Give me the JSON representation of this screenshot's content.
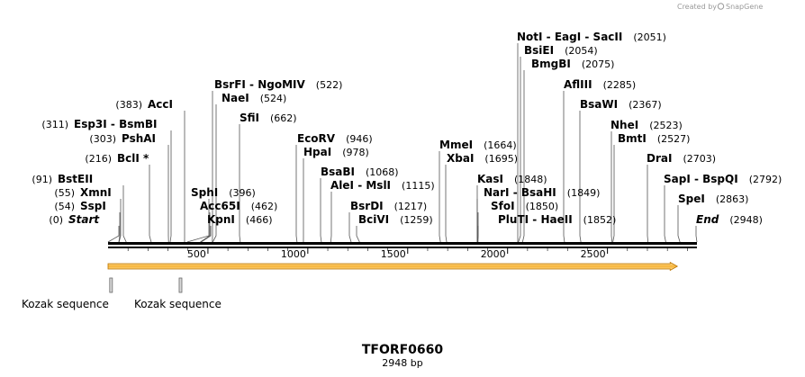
{
  "credit": {
    "text": "Created by",
    "brand": "SnapGene"
  },
  "sequence": {
    "name": "TFORF0660",
    "length_label": "2948 bp",
    "length": 2948
  },
  "colors": {
    "orf_fill": "#f4a81e",
    "orf_stroke": "#b97300",
    "backbone": "#000000",
    "lead": "#555555"
  },
  "enzymes": [
    {
      "parts": [
        "Start"
      ],
      "pos": "(0)",
      "site": 0,
      "special": true
    },
    {
      "parts": [
        "SspI"
      ],
      "pos": "(54)",
      "site": 54
    },
    {
      "parts": [
        "XmnI"
      ],
      "pos": "(55)",
      "site": 55
    },
    {
      "parts": [
        "BstEII"
      ],
      "pos": "(91)",
      "site": 91
    },
    {
      "parts": [
        "BclI *"
      ],
      "pos": "(216)",
      "site": 216
    },
    {
      "parts": [
        "PshAI"
      ],
      "pos": "(303)",
      "site": 303
    },
    {
      "parts": [
        "Esp3I",
        "BsmBI"
      ],
      "pos": "(311)",
      "site": 311
    },
    {
      "parts": [
        "AccI"
      ],
      "pos": "(383)",
      "site": 383
    },
    {
      "parts": [
        "SphI"
      ],
      "pos": "(396)",
      "site": 396
    },
    {
      "parts": [
        "Acc65I"
      ],
      "pos": "(462)",
      "site": 462
    },
    {
      "parts": [
        "KpnI"
      ],
      "pos": "(466)",
      "site": 466
    },
    {
      "parts": [
        "BsrFI",
        "NgoMIV"
      ],
      "pos": "(522)",
      "site": 522
    },
    {
      "parts": [
        "NaeI"
      ],
      "pos": "(524)",
      "site": 524
    },
    {
      "parts": [
        "SfiI"
      ],
      "pos": "(662)",
      "site": 662
    },
    {
      "parts": [
        "EcoRV"
      ],
      "pos": "(946)",
      "site": 946
    },
    {
      "parts": [
        "HpaI"
      ],
      "pos": "(978)",
      "site": 978
    },
    {
      "parts": [
        "BsaBI"
      ],
      "pos": "(1068)",
      "site": 1068
    },
    {
      "parts": [
        "AleI",
        "MslI"
      ],
      "pos": "(1115)",
      "site": 1115
    },
    {
      "parts": [
        "BsrDI"
      ],
      "pos": "(1217)",
      "site": 1217
    },
    {
      "parts": [
        "BciVI"
      ],
      "pos": "(1259)",
      "site": 1259
    },
    {
      "parts": [
        "MmeI"
      ],
      "pos": "(1664)",
      "site": 1664
    },
    {
      "parts": [
        "XbaI"
      ],
      "pos": "(1695)",
      "site": 1695
    },
    {
      "parts": [
        "KasI"
      ],
      "pos": "(1848)",
      "site": 1848
    },
    {
      "parts": [
        "NarI",
        "BsaHI"
      ],
      "pos": "(1849)",
      "site": 1849
    },
    {
      "parts": [
        "SfoI"
      ],
      "pos": "(1850)",
      "site": 1850
    },
    {
      "parts": [
        "PluTI",
        "HaeII"
      ],
      "pos": "(1852)",
      "site": 1852
    },
    {
      "parts": [
        "NotI",
        "EagI",
        "SacII"
      ],
      "pos": "(2051)",
      "site": 2051
    },
    {
      "parts": [
        "BsiEI"
      ],
      "pos": "(2054)",
      "site": 2054
    },
    {
      "parts": [
        "BmgBI"
      ],
      "pos": "(2075)",
      "site": 2075
    },
    {
      "parts": [
        "AflIII"
      ],
      "pos": "(2285)",
      "site": 2285
    },
    {
      "parts": [
        "BsaWI"
      ],
      "pos": "(2367)",
      "site": 2367
    },
    {
      "parts": [
        "NheI"
      ],
      "pos": "(2523)",
      "site": 2523
    },
    {
      "parts": [
        "BmtI"
      ],
      "pos": "(2527)",
      "site": 2527
    },
    {
      "parts": [
        "DraI"
      ],
      "pos": "(2703)",
      "site": 2703
    },
    {
      "parts": [
        "SapI",
        "BspQI"
      ],
      "pos": "(2792)",
      "site": 2792
    },
    {
      "parts": [
        "SpeI"
      ],
      "pos": "(2863)",
      "site": 2863
    },
    {
      "parts": [
        "End"
      ],
      "pos": "(2948)",
      "site": 2948,
      "special": true
    }
  ],
  "ticks": [
    {
      "label": "500",
      "value": 500
    },
    {
      "label": "1000",
      "value": 1000
    },
    {
      "label": "1500",
      "value": 1500
    },
    {
      "label": "2000",
      "value": 2000
    },
    {
      "label": "2500",
      "value": 2500
    }
  ],
  "features": [
    {
      "label": "Kozak sequence",
      "start": 6,
      "end": 16
    },
    {
      "label": "Kozak sequence",
      "start": 356,
      "end": 366
    }
  ],
  "orf": {
    "start": 0,
    "end": 2850
  }
}
